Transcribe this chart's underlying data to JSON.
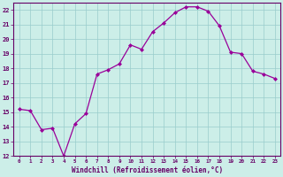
{
  "x": [
    0,
    1,
    2,
    3,
    4,
    5,
    6,
    7,
    8,
    9,
    10,
    11,
    12,
    13,
    14,
    15,
    16,
    17,
    18,
    19,
    20,
    21,
    22,
    23
  ],
  "y": [
    15.2,
    15.1,
    13.8,
    13.9,
    12.0,
    14.2,
    14.9,
    17.6,
    17.9,
    18.3,
    19.6,
    19.3,
    20.5,
    21.1,
    21.8,
    22.2,
    22.2,
    21.9,
    20.9,
    19.1,
    19.0,
    17.8,
    17.6,
    17.3
  ],
  "line_color": "#990099",
  "marker_color": "#990099",
  "bg_color": "#cceee8",
  "grid_color": "#99cccc",
  "xlabel": "Windchill (Refroidissement éolien,°C)",
  "xlim": [
    -0.5,
    23.5
  ],
  "ylim": [
    12,
    22.5
  ],
  "yticks": [
    12,
    13,
    14,
    15,
    16,
    17,
    18,
    19,
    20,
    21,
    22
  ],
  "xticks": [
    0,
    1,
    2,
    3,
    4,
    5,
    6,
    7,
    8,
    9,
    10,
    11,
    12,
    13,
    14,
    15,
    16,
    17,
    18,
    19,
    20,
    21,
    22,
    23
  ],
  "xtick_labels": [
    "0",
    "1",
    "2",
    "3",
    "4",
    "5",
    "6",
    "7",
    "8",
    "9",
    "10",
    "11",
    "12",
    "13",
    "14",
    "15",
    "16",
    "17",
    "18",
    "19",
    "20",
    "21",
    "22",
    "23"
  ],
  "label_color": "#660066",
  "axis_color": "#660066",
  "tick_color": "#660066",
  "spine_color": "#660066"
}
